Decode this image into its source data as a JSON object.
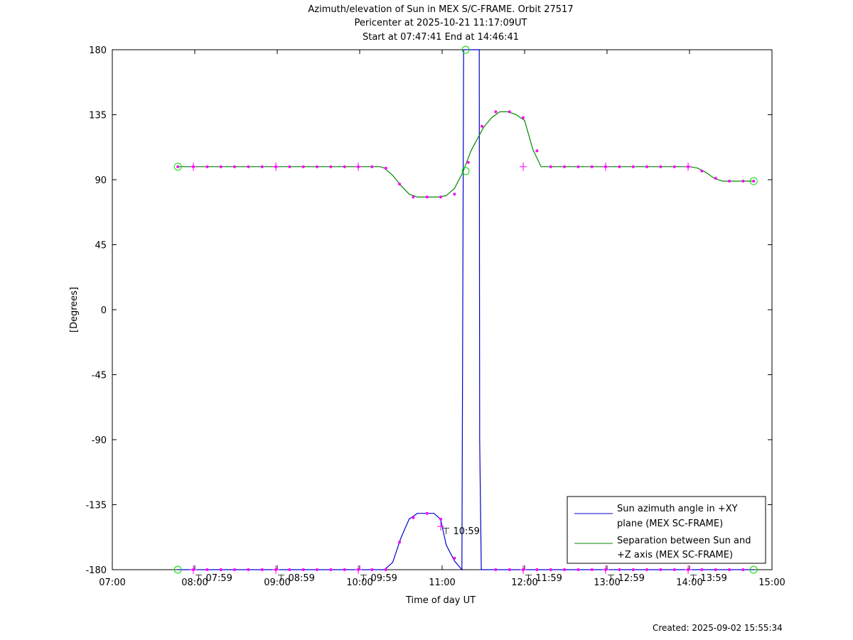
{
  "chart_data": {
    "type": "line",
    "title_lines": [
      "Azimuth/elevation of Sun in MEX S/C-FRAME.  Orbit 27517",
      "Pericenter at 2025-10-21 11:17:09UT",
      "Start at 07:47:41 End at 14:46:41"
    ],
    "xlabel": "Time of day UT",
    "ylabel": "[Degrees]",
    "xlim": [
      7.0,
      15.0
    ],
    "ylim": [
      -180,
      180
    ],
    "x_tick_labels": [
      "07:00",
      "08:00",
      "09:00",
      "10:00",
      "11:00",
      "12:00",
      "13:00",
      "14:00",
      "15:00"
    ],
    "x_tick_values": [
      7,
      8,
      9,
      10,
      11,
      12,
      13,
      14,
      15
    ],
    "y_tick_labels": [
      "180",
      "135",
      "90",
      "45",
      "0",
      "-45",
      "-90",
      "-135",
      "-180"
    ],
    "y_tick_values": [
      180,
      135,
      90,
      45,
      0,
      -45,
      -90,
      -135,
      -180
    ],
    "time_markers": [
      {
        "label": "07:59",
        "x": 7.983
      },
      {
        "label": "08:59",
        "x": 8.983
      },
      {
        "label": "09:59",
        "x": 9.983
      },
      {
        "label": "10:59",
        "x": 10.983,
        "y": -150
      },
      {
        "label": "11:59",
        "x": 11.983
      },
      {
        "label": "12:59",
        "x": 12.983
      },
      {
        "label": "13:59",
        "x": 13.983
      }
    ],
    "series": [
      {
        "name": "Sun azimuth angle in +XY plane (MEX SC-FRAME)",
        "color": "#0000cc",
        "x": [
          7.795,
          8.0,
          8.5,
          9.0,
          9.5,
          10.0,
          10.3,
          10.4,
          10.5,
          10.6,
          10.7,
          10.8,
          10.9,
          10.98,
          11.05,
          11.15,
          11.24,
          11.245,
          11.26,
          11.265,
          11.45,
          11.455,
          11.475,
          11.48,
          12.0,
          12.5,
          13.0,
          13.5,
          14.0,
          14.5,
          14.778
        ],
        "y": [
          -180,
          -180,
          -180,
          -180,
          -180,
          -180,
          -180,
          -175,
          -158,
          -145,
          -141,
          -141,
          -141,
          -145,
          -163,
          -174,
          -180,
          -90,
          180,
          180,
          180,
          -90,
          -180,
          -180,
          -180,
          -180,
          -180,
          -180,
          -180,
          -180,
          -180
        ]
      },
      {
        "name": "Separation between Sun and +Z axis (MEX SC-FRAME)",
        "color": "#008800",
        "x": [
          7.795,
          8.0,
          8.5,
          9.0,
          9.5,
          10.0,
          10.25,
          10.3,
          10.4,
          10.5,
          10.6,
          10.7,
          10.8,
          10.95,
          11.05,
          11.15,
          11.25,
          11.35,
          11.5,
          11.6,
          11.7,
          11.8,
          11.9,
          12.0,
          12.1,
          12.2,
          12.5,
          13.0,
          13.5,
          14.0,
          14.1,
          14.2,
          14.3,
          14.4,
          14.5,
          14.778
        ],
        "y": [
          99,
          99,
          99,
          99,
          99,
          99,
          99,
          98,
          93,
          86,
          80,
          78,
          78,
          78,
          79,
          84,
          95,
          110,
          126,
          133,
          137,
          137,
          135,
          131,
          111,
          99,
          99,
          99,
          99,
          99,
          98,
          95,
          91,
          89,
          89,
          89
        ]
      }
    ],
    "marker_points": [
      {
        "x": 7.795,
        "y": 99
      },
      {
        "x": 7.983,
        "y": 99
      },
      {
        "x": 8.15,
        "y": 99
      },
      {
        "x": 8.317,
        "y": 99
      },
      {
        "x": 8.483,
        "y": 99
      },
      {
        "x": 8.65,
        "y": 99
      },
      {
        "x": 8.817,
        "y": 99
      },
      {
        "x": 8.983,
        "y": 99
      },
      {
        "x": 9.15,
        "y": 99
      },
      {
        "x": 9.317,
        "y": 99
      },
      {
        "x": 9.483,
        "y": 99
      },
      {
        "x": 9.65,
        "y": 99
      },
      {
        "x": 9.817,
        "y": 99
      },
      {
        "x": 9.983,
        "y": 99
      },
      {
        "x": 10.15,
        "y": 99
      },
      {
        "x": 10.317,
        "y": 98
      },
      {
        "x": 10.483,
        "y": 87
      },
      {
        "x": 10.65,
        "y": 78
      },
      {
        "x": 10.817,
        "y": 78
      },
      {
        "x": 10.983,
        "y": 78
      },
      {
        "x": 11.15,
        "y": 80
      },
      {
        "x": 11.317,
        "y": 102
      },
      {
        "x": 11.483,
        "y": 127
      },
      {
        "x": 11.65,
        "y": 137
      },
      {
        "x": 11.817,
        "y": 137
      },
      {
        "x": 11.983,
        "y": 133
      },
      {
        "x": 12.15,
        "y": 110
      },
      {
        "x": 12.317,
        "y": 99
      },
      {
        "x": 12.483,
        "y": 99
      },
      {
        "x": 12.65,
        "y": 99
      },
      {
        "x": 12.817,
        "y": 99
      },
      {
        "x": 12.983,
        "y": 99
      },
      {
        "x": 13.15,
        "y": 99
      },
      {
        "x": 13.317,
        "y": 99
      },
      {
        "x": 13.483,
        "y": 99
      },
      {
        "x": 13.65,
        "y": 99
      },
      {
        "x": 13.817,
        "y": 99
      },
      {
        "x": 13.983,
        "y": 99
      },
      {
        "x": 14.15,
        "y": 96
      },
      {
        "x": 14.317,
        "y": 91
      },
      {
        "x": 14.483,
        "y": 89
      },
      {
        "x": 14.65,
        "y": 89
      },
      {
        "x": 14.778,
        "y": 89
      },
      {
        "x": 7.983,
        "y": -180
      },
      {
        "x": 8.15,
        "y": -180
      },
      {
        "x": 8.317,
        "y": -180
      },
      {
        "x": 8.483,
        "y": -180
      },
      {
        "x": 8.65,
        "y": -180
      },
      {
        "x": 8.817,
        "y": -180
      },
      {
        "x": 8.983,
        "y": -180
      },
      {
        "x": 9.15,
        "y": -180
      },
      {
        "x": 9.317,
        "y": -180
      },
      {
        "x": 9.483,
        "y": -180
      },
      {
        "x": 9.65,
        "y": -180
      },
      {
        "x": 9.817,
        "y": -180
      },
      {
        "x": 9.983,
        "y": -180
      },
      {
        "x": 10.15,
        "y": -180
      },
      {
        "x": 10.317,
        "y": -180
      },
      {
        "x": 10.483,
        "y": -161
      },
      {
        "x": 10.65,
        "y": -144
      },
      {
        "x": 10.817,
        "y": -141
      },
      {
        "x": 10.983,
        "y": -145
      },
      {
        "x": 11.15,
        "y": -172
      },
      {
        "x": 11.65,
        "y": -180
      },
      {
        "x": 11.817,
        "y": -180
      },
      {
        "x": 11.983,
        "y": -180
      },
      {
        "x": 12.15,
        "y": -180
      },
      {
        "x": 12.317,
        "y": -180
      },
      {
        "x": 12.483,
        "y": -180
      },
      {
        "x": 12.65,
        "y": -180
      },
      {
        "x": 12.817,
        "y": -180
      },
      {
        "x": 12.983,
        "y": -180
      },
      {
        "x": 13.15,
        "y": -180
      },
      {
        "x": 13.317,
        "y": -180
      },
      {
        "x": 13.483,
        "y": -180
      },
      {
        "x": 13.65,
        "y": -180
      },
      {
        "x": 13.817,
        "y": -180
      },
      {
        "x": 13.983,
        "y": -180
      },
      {
        "x": 14.15,
        "y": -180
      },
      {
        "x": 14.317,
        "y": -180
      },
      {
        "x": 14.483,
        "y": -180
      },
      {
        "x": 14.65,
        "y": -180
      }
    ],
    "circle_points": [
      {
        "x": 7.795,
        "y": 99
      },
      {
        "x": 7.795,
        "y": -180
      },
      {
        "x": 14.778,
        "y": 89
      },
      {
        "x": 14.778,
        "y": -180
      },
      {
        "x": 11.285,
        "y": 180
      },
      {
        "x": 11.285,
        "y": 96
      }
    ],
    "legend": {
      "placement": "bottom-right",
      "entries": [
        {
          "lines": [
            "Sun azimuth angle in +XY",
            "plane (MEX SC-FRAME)"
          ],
          "color": "#0000cc"
        },
        {
          "lines": [
            "Separation between Sun and",
            "+Z axis (MEX SC-FRAME)"
          ],
          "color": "#008800"
        }
      ]
    },
    "colors": {
      "marker": "#ff00ff",
      "circle": "#00dd00"
    },
    "grid": false
  },
  "footer": {
    "created": "Created: 2025-09-02 15:55:34"
  }
}
